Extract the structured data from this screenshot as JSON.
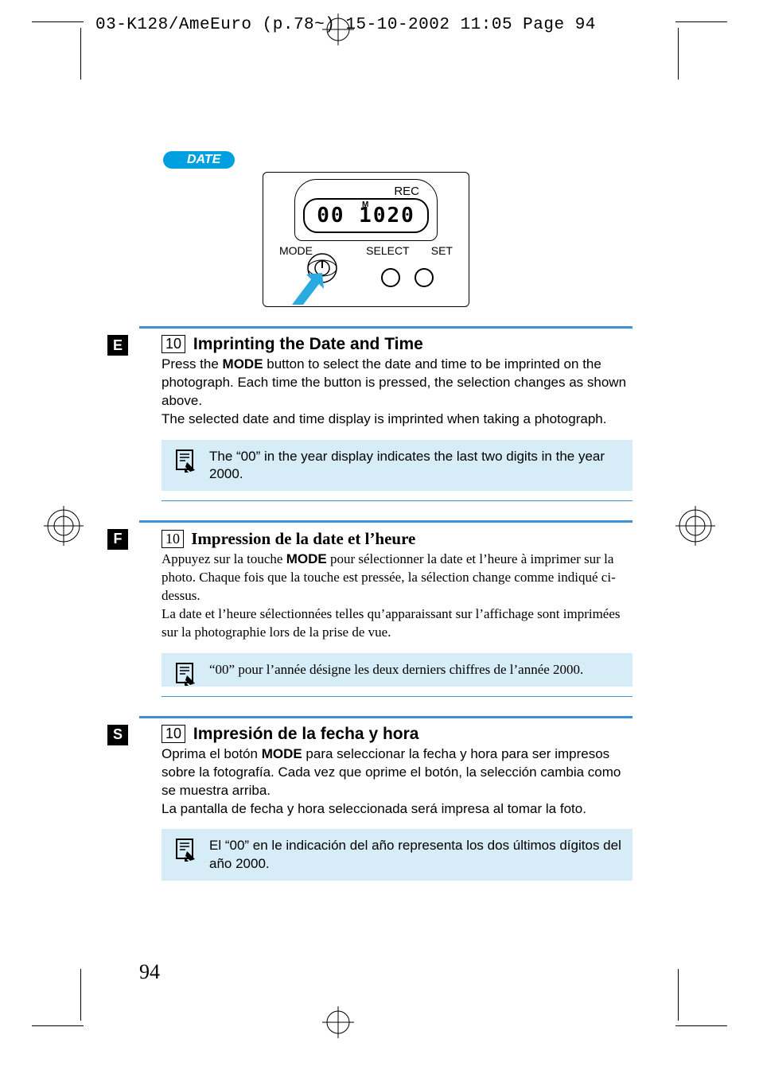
{
  "header": "03-K128/AmeEuro (p.78~)  15-10-2002  11:05  Page 94",
  "date_pill": "DATE",
  "device": {
    "rec": "REC",
    "m": "M",
    "lcd": "00 1020",
    "mode": "MODE",
    "select": "SELECT",
    "set": "SET"
  },
  "colors": {
    "accent_blue": "#4090d8",
    "pill_blue": "#00a0e0",
    "note_bg": "#d6ecf6",
    "arrow": "#29abe2"
  },
  "sections": [
    {
      "lang": "E",
      "num": "10",
      "title": "Imprinting the Date and Time",
      "serif": false,
      "body_pre": "Press the ",
      "mode": "MODE",
      "body_post": " button to select the date and time to be imprinted on the photograph. Each time the button is pressed, the selection changes as shown above.",
      "body2": "The selected date and time display is imprinted when taking a photograph.",
      "note": "The “00” in the year display indicates the last two digits in the year 2000."
    },
    {
      "lang": "F",
      "num": "10",
      "title": "Impression de la date et l’heure",
      "serif": true,
      "body_pre": "Appuyez sur la touche ",
      "mode": "MODE",
      "body_post": " pour sélectionner la date et l’heure à imprimer sur la photo. Chaque fois que la touche est pressée, la sélection change comme indiqué ci-dessus.",
      "body2": "La date et l’heure sélectionnées telles qu’apparaissant sur l’affichage sont imprimées sur la photographie lors de la prise de vue.",
      "note": "“00” pour l’année désigne les deux derniers chiffres de l’année 2000."
    },
    {
      "lang": "S",
      "num": "10",
      "title": "Impresión de la fecha y hora",
      "serif": false,
      "body_pre": "Oprima el botón ",
      "mode": "MODE",
      "body_post": " para seleccionar la fecha y hora para ser impresos sobre la fotografía. Cada vez que oprime el botón, la selección cambia como se muestra arriba.",
      "body2": "La pantalla de fecha y hora seleccionada será impresa al tomar la foto.",
      "note": "El “00” en le indicación del año representa los dos últimos dígitos del año 2000."
    }
  ],
  "page_number": "94"
}
